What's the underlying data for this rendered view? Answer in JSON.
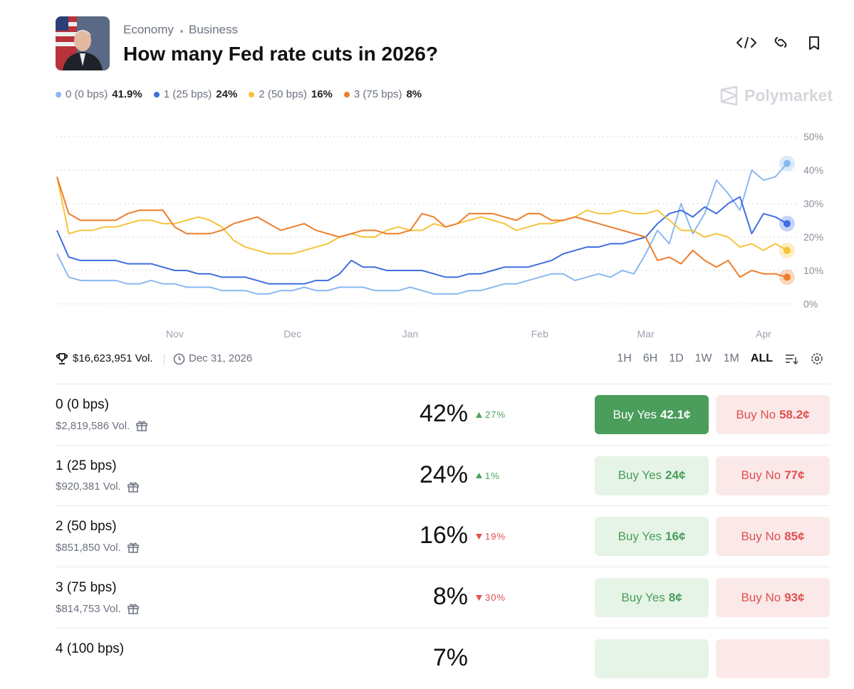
{
  "header": {
    "categories": [
      "Economy",
      "Business"
    ],
    "title": "How many Fed rate cuts in 2026?",
    "brand": "Polymarket"
  },
  "chart_data": {
    "type": "line",
    "categories": [
      null,
      null,
      null,
      null,
      null,
      null,
      null,
      null,
      null,
      null,
      "Nov",
      null,
      null,
      null,
      null,
      null,
      null,
      null,
      null,
      null,
      "Dec",
      null,
      null,
      null,
      null,
      null,
      null,
      null,
      null,
      null,
      "Jan",
      null,
      null,
      null,
      null,
      null,
      null,
      null,
      null,
      null,
      null,
      "Feb",
      null,
      null,
      null,
      null,
      null,
      null,
      null,
      null,
      "Mar",
      null,
      null,
      null,
      null,
      null,
      null,
      null,
      null,
      null,
      "Apr",
      null,
      null
    ],
    "series": [
      {
        "name": "0 (0 bps)",
        "current": "41.9%",
        "color": "#8ab8f0",
        "values": [
          15,
          8,
          7,
          7,
          7,
          7,
          6,
          6,
          7,
          6,
          6,
          5,
          5,
          5,
          4,
          4,
          4,
          3,
          3,
          4,
          4,
          5,
          4,
          4,
          5,
          5,
          5,
          4,
          4,
          4,
          5,
          4,
          3,
          3,
          3,
          4,
          4,
          5,
          6,
          6,
          7,
          8,
          9,
          9,
          7,
          8,
          9,
          8,
          10,
          9,
          15,
          22,
          18,
          30,
          21,
          27,
          37,
          33,
          28,
          40,
          37,
          38,
          42
        ]
      },
      {
        "name": "1 (25 bps)",
        "current": "24%",
        "color": "#3f6ee0",
        "values": [
          22,
          14,
          13,
          13,
          13,
          13,
          12,
          12,
          12,
          11,
          10,
          10,
          9,
          9,
          8,
          8,
          8,
          7,
          6,
          6,
          6,
          6,
          7,
          7,
          9,
          13,
          11,
          11,
          10,
          10,
          10,
          10,
          9,
          8,
          8,
          9,
          9,
          10,
          11,
          11,
          11,
          12,
          13,
          15,
          16,
          17,
          17,
          18,
          18,
          19,
          20,
          24,
          27,
          28,
          26,
          29,
          27,
          30,
          32,
          21,
          27,
          26,
          24
        ]
      },
      {
        "name": "2 (50 bps)",
        "current": "16%",
        "color": "#f5c33b",
        "values": [
          38,
          21,
          22,
          22,
          23,
          23,
          24,
          25,
          25,
          24,
          24,
          25,
          26,
          25,
          23,
          19,
          17,
          16,
          15,
          15,
          15,
          16,
          17,
          18,
          20,
          21,
          20,
          20,
          22,
          23,
          22,
          22,
          24,
          23,
          24,
          25,
          26,
          25,
          24,
          22,
          23,
          24,
          24,
          25,
          26,
          28,
          27,
          27,
          28,
          27,
          27,
          28,
          25,
          22,
          22,
          20,
          21,
          20,
          17,
          18,
          16,
          18,
          16
        ]
      },
      {
        "name": "3 (75 bps)",
        "current": "8%",
        "color": "#ee7d2b",
        "values": [
          38,
          27,
          25,
          25,
          25,
          25,
          27,
          28,
          28,
          28,
          23,
          21,
          21,
          21,
          22,
          24,
          25,
          26,
          24,
          22,
          23,
          24,
          22,
          21,
          20,
          21,
          22,
          22,
          21,
          21,
          22,
          27,
          26,
          23,
          24,
          27,
          27,
          27,
          26,
          25,
          27,
          27,
          25,
          25,
          26,
          25,
          24,
          23,
          22,
          21,
          20,
          13,
          14,
          12,
          16,
          13,
          11,
          13,
          8,
          10,
          9,
          9,
          8
        ]
      }
    ],
    "ylim": [
      0,
      50
    ],
    "yticks": [
      {
        "value": 0,
        "label": "0%"
      },
      {
        "value": 10,
        "label": "10%"
      },
      {
        "value": 20,
        "label": "20%"
      },
      {
        "value": 30,
        "label": "30%"
      },
      {
        "value": 40,
        "label": "40%"
      },
      {
        "value": 50,
        "label": "50%"
      }
    ],
    "grid": true
  },
  "stats": {
    "volume": "$16,623,951 Vol.",
    "end_date": "Dec 31, 2026"
  },
  "ranges": {
    "options": [
      "1H",
      "6H",
      "1D",
      "1W",
      "1M",
      "ALL"
    ],
    "active": "ALL"
  },
  "buttons": {
    "yes": "Buy Yes",
    "no": "Buy No"
  },
  "outcomes": [
    {
      "name": "0 (0 bps)",
      "volume": "$2,819,586 Vol.",
      "chance": "42%",
      "change": "27%",
      "direction": "up",
      "yes": "42.1¢",
      "no": "58.2¢"
    },
    {
      "name": "1 (25 bps)",
      "volume": "$920,381 Vol.",
      "chance": "24%",
      "change": "1%",
      "direction": "up",
      "yes": "24¢",
      "no": "77¢"
    },
    {
      "name": "2 (50 bps)",
      "volume": "$851,850 Vol.",
      "chance": "16%",
      "change": "19%",
      "direction": "down",
      "yes": "16¢",
      "no": "85¢"
    },
    {
      "name": "3 (75 bps)",
      "volume": "$814,753 Vol.",
      "chance": "8%",
      "change": "30%",
      "direction": "down",
      "yes": "8¢",
      "no": "93¢"
    },
    {
      "name": "4 (100 bps)",
      "chance": "7%"
    }
  ]
}
